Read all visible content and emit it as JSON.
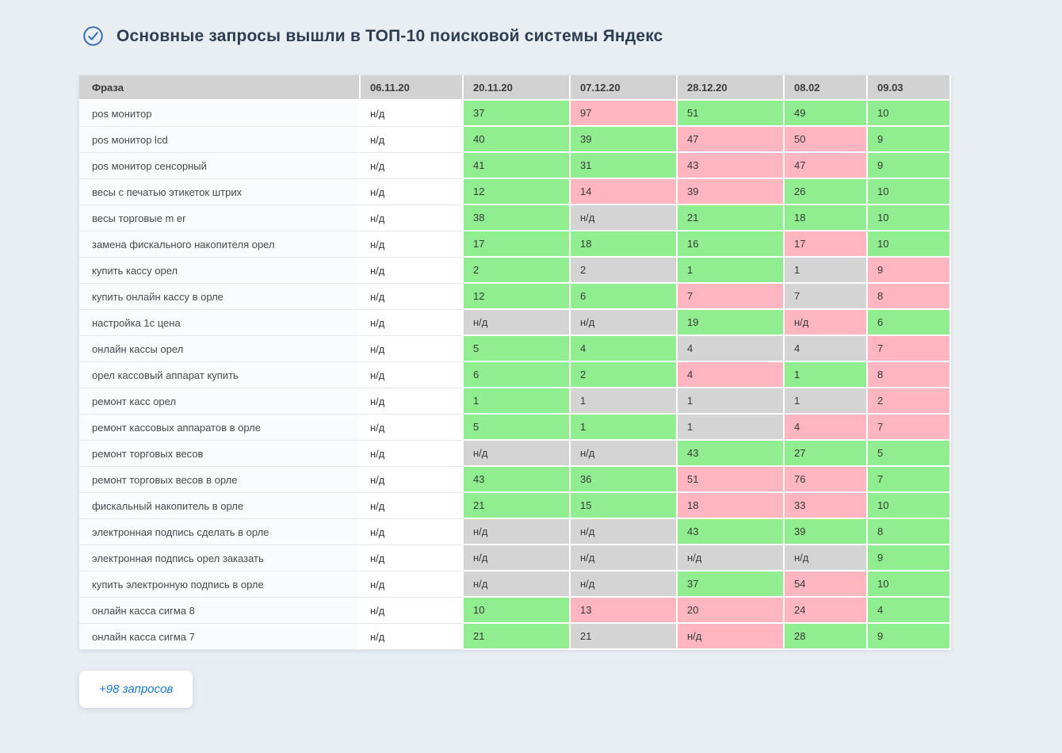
{
  "colors": {
    "page-bg": "#e9eef3",
    "header-bg": "#d2d2d2",
    "green": "#90ee90",
    "pink": "#ffb6c1",
    "gray": "#d4d4d4",
    "accent": "#3a6db4",
    "link-blue": "#2077d0"
  },
  "header": {
    "icon": "check-circle-icon",
    "title": "Основные запросы вышли в ТОП-10 поисковой системы Яндекс"
  },
  "table": {
    "columns": [
      "Фраза",
      "06.11.20",
      "20.11.20",
      "07.12.20",
      "28.12.20",
      "08.02",
      "09.03"
    ],
    "legend": {
      "green": "position improved",
      "pink": "position worsened",
      "gray": "no change / no data",
      "plain": "no data baseline"
    },
    "rows": [
      {
        "phrase": "pos монитор",
        "cells": [
          [
            "н/д",
            "plain"
          ],
          [
            "37",
            "green"
          ],
          [
            "97",
            "pink"
          ],
          [
            "51",
            "green"
          ],
          [
            "49",
            "green"
          ],
          [
            "10",
            "green"
          ]
        ]
      },
      {
        "phrase": "pos монитор lcd",
        "cells": [
          [
            "н/д",
            "plain"
          ],
          [
            "40",
            "green"
          ],
          [
            "39",
            "green"
          ],
          [
            "47",
            "pink"
          ],
          [
            "50",
            "pink"
          ],
          [
            "9",
            "green"
          ]
        ]
      },
      {
        "phrase": "pos монитор сенсорный",
        "cells": [
          [
            "н/д",
            "plain"
          ],
          [
            "41",
            "green"
          ],
          [
            "31",
            "green"
          ],
          [
            "43",
            "pink"
          ],
          [
            "47",
            "pink"
          ],
          [
            "9",
            "green"
          ]
        ]
      },
      {
        "phrase": "весы с печатью этикеток штрих",
        "cells": [
          [
            "н/д",
            "plain"
          ],
          [
            "12",
            "green"
          ],
          [
            "14",
            "pink"
          ],
          [
            "39",
            "pink"
          ],
          [
            "26",
            "green"
          ],
          [
            "10",
            "green"
          ]
        ]
      },
      {
        "phrase": "весы торговые m er",
        "cells": [
          [
            "н/д",
            "plain"
          ],
          [
            "38",
            "green"
          ],
          [
            "н/д",
            "gray"
          ],
          [
            "21",
            "green"
          ],
          [
            "18",
            "green"
          ],
          [
            "10",
            "green"
          ]
        ]
      },
      {
        "phrase": "замена фискального накопителя орел",
        "cells": [
          [
            "н/д",
            "plain"
          ],
          [
            "17",
            "green"
          ],
          [
            "18",
            "green"
          ],
          [
            "16",
            "green"
          ],
          [
            "17",
            "pink"
          ],
          [
            "10",
            "green"
          ]
        ]
      },
      {
        "phrase": "купить кассу орел",
        "cells": [
          [
            "н/д",
            "plain"
          ],
          [
            "2",
            "green"
          ],
          [
            "2",
            "gray"
          ],
          [
            "1",
            "green"
          ],
          [
            "1",
            "gray"
          ],
          [
            "9",
            "pink"
          ]
        ]
      },
      {
        "phrase": "купить онлайн кассу в орле",
        "cells": [
          [
            "н/д",
            "plain"
          ],
          [
            "12",
            "green"
          ],
          [
            "6",
            "green"
          ],
          [
            "7",
            "pink"
          ],
          [
            "7",
            "gray"
          ],
          [
            "8",
            "pink"
          ]
        ]
      },
      {
        "phrase": "настройка 1с цена",
        "cells": [
          [
            "н/д",
            "plain"
          ],
          [
            "н/д",
            "gray"
          ],
          [
            "н/д",
            "gray"
          ],
          [
            "19",
            "green"
          ],
          [
            "н/д",
            "pink"
          ],
          [
            "6",
            "green"
          ]
        ]
      },
      {
        "phrase": "онлайн кассы орел",
        "cells": [
          [
            "н/д",
            "plain"
          ],
          [
            "5",
            "green"
          ],
          [
            "4",
            "green"
          ],
          [
            "4",
            "gray"
          ],
          [
            "4",
            "gray"
          ],
          [
            "7",
            "pink"
          ]
        ]
      },
      {
        "phrase": "орел кассовый аппарат купить",
        "cells": [
          [
            "н/д",
            "plain"
          ],
          [
            "6",
            "green"
          ],
          [
            "2",
            "green"
          ],
          [
            "4",
            "pink"
          ],
          [
            "1",
            "green"
          ],
          [
            "8",
            "pink"
          ]
        ]
      },
      {
        "phrase": "ремонт касс орел",
        "cells": [
          [
            "н/д",
            "plain"
          ],
          [
            "1",
            "green"
          ],
          [
            "1",
            "gray"
          ],
          [
            "1",
            "gray"
          ],
          [
            "1",
            "gray"
          ],
          [
            "2",
            "pink"
          ]
        ]
      },
      {
        "phrase": "ремонт кассовых аппаратов в орле",
        "cells": [
          [
            "н/д",
            "plain"
          ],
          [
            "5",
            "green"
          ],
          [
            "1",
            "green"
          ],
          [
            "1",
            "gray"
          ],
          [
            "4",
            "pink"
          ],
          [
            "7",
            "pink"
          ]
        ]
      },
      {
        "phrase": "ремонт торговых весов",
        "cells": [
          [
            "н/д",
            "plain"
          ],
          [
            "н/д",
            "gray"
          ],
          [
            "н/д",
            "gray"
          ],
          [
            "43",
            "green"
          ],
          [
            "27",
            "green"
          ],
          [
            "5",
            "green"
          ]
        ]
      },
      {
        "phrase": "ремонт торговых весов в орле",
        "cells": [
          [
            "н/д",
            "plain"
          ],
          [
            "43",
            "green"
          ],
          [
            "36",
            "green"
          ],
          [
            "51",
            "pink"
          ],
          [
            "76",
            "pink"
          ],
          [
            "7",
            "green"
          ]
        ]
      },
      {
        "phrase": "фискальный накопитель в орле",
        "cells": [
          [
            "н/д",
            "plain"
          ],
          [
            "21",
            "green"
          ],
          [
            "15",
            "green"
          ],
          [
            "18",
            "pink"
          ],
          [
            "33",
            "pink"
          ],
          [
            "10",
            "green"
          ]
        ]
      },
      {
        "phrase": "электронная подпись сделать в орле",
        "cells": [
          [
            "н/д",
            "plain"
          ],
          [
            "н/д",
            "gray"
          ],
          [
            "н/д",
            "gray"
          ],
          [
            "43",
            "green"
          ],
          [
            "39",
            "green"
          ],
          [
            "8",
            "green"
          ]
        ]
      },
      {
        "phrase": "электронная подпись орел заказать",
        "cells": [
          [
            "н/д",
            "plain"
          ],
          [
            "н/д",
            "gray"
          ],
          [
            "н/д",
            "gray"
          ],
          [
            "н/д",
            "gray"
          ],
          [
            "н/д",
            "gray"
          ],
          [
            "9",
            "green"
          ]
        ]
      },
      {
        "phrase": "купить электронную подпись в орле",
        "cells": [
          [
            "н/д",
            "plain"
          ],
          [
            "н/д",
            "gray"
          ],
          [
            "н/д",
            "gray"
          ],
          [
            "37",
            "green"
          ],
          [
            "54",
            "pink"
          ],
          [
            "10",
            "green"
          ]
        ]
      },
      {
        "phrase": "онлайн касса сигма 8",
        "cells": [
          [
            "н/д",
            "plain"
          ],
          [
            "10",
            "green"
          ],
          [
            "13",
            "pink"
          ],
          [
            "20",
            "pink"
          ],
          [
            "24",
            "pink"
          ],
          [
            "4",
            "green"
          ]
        ]
      },
      {
        "phrase": "онлайн касса сигма 7",
        "cells": [
          [
            "н/д",
            "plain"
          ],
          [
            "21",
            "green"
          ],
          [
            "21",
            "gray"
          ],
          [
            "н/д",
            "pink"
          ],
          [
            "28",
            "green"
          ],
          [
            "9",
            "green"
          ]
        ]
      }
    ]
  },
  "footer": {
    "more_label": "+98 запросов"
  }
}
